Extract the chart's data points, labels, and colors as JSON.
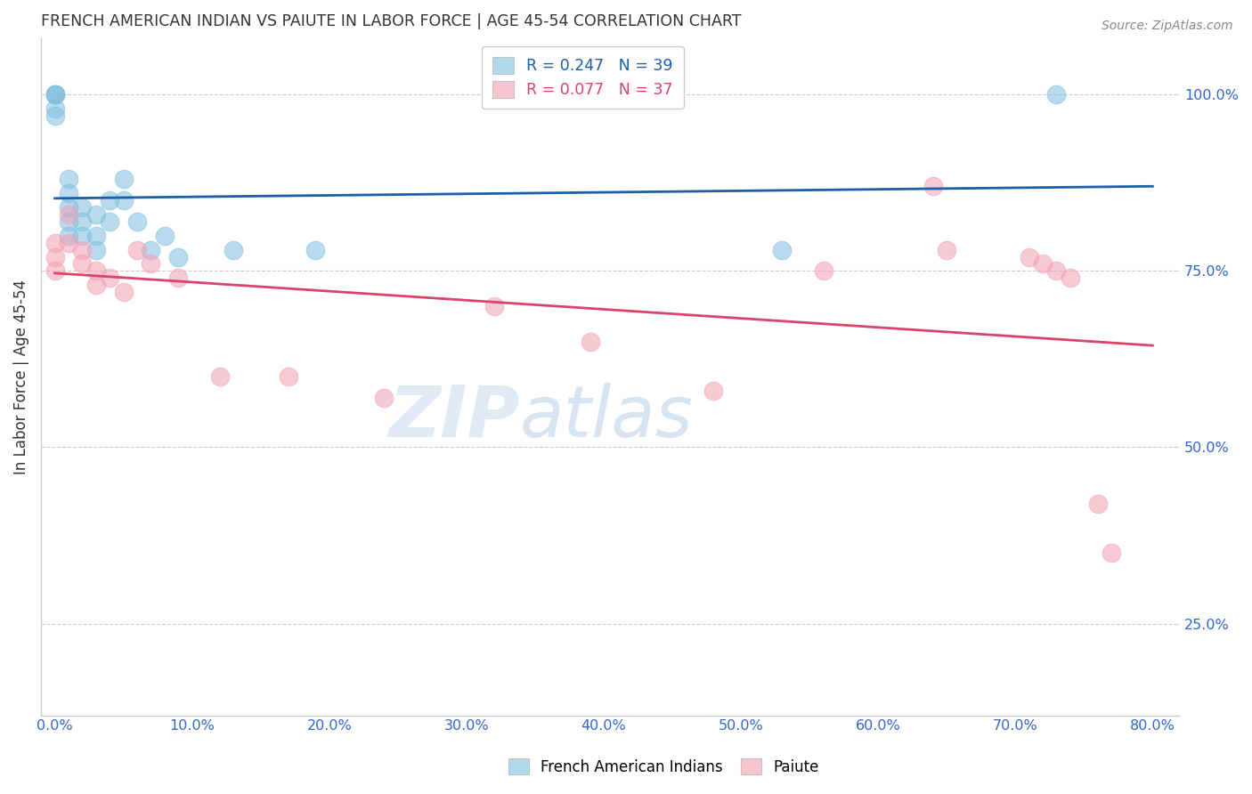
{
  "title": "FRENCH AMERICAN INDIAN VS PAIUTE IN LABOR FORCE | AGE 45-54 CORRELATION CHART",
  "source": "Source: ZipAtlas.com",
  "ylabel_label": "In Labor Force | Age 45-54",
  "ylabel_tick_vals": [
    1.0,
    0.75,
    0.5,
    0.25
  ],
  "ylabel_tick_labels": [
    "100.0%",
    "75.0%",
    "50.0%",
    "25.0%"
  ],
  "xtick_vals": [
    0.0,
    0.1,
    0.2,
    0.3,
    0.4,
    0.5,
    0.6,
    0.7,
    0.8
  ],
  "xtick_labels": [
    "0.0%",
    "10.0%",
    "20.0%",
    "30.0%",
    "40.0%",
    "50.0%",
    "60.0%",
    "70.0%",
    "80.0%"
  ],
  "xlim": [
    -0.01,
    0.82
  ],
  "ylim": [
    0.12,
    1.08
  ],
  "watermark_zip": "ZIP",
  "watermark_atlas": "atlas",
  "blue_color": "#7fbfdf",
  "pink_color": "#f4a0b5",
  "blue_line_color": "#1a5fa8",
  "pink_line_color": "#d9436e",
  "title_color": "#333333",
  "axis_label_color": "#333333",
  "tick_color": "#3366cc",
  "grid_color": "#cccccc",
  "blue_R": 0.247,
  "blue_N": 39,
  "pink_R": 0.077,
  "pink_N": 37,
  "blue_scatter_x": [
    0.0,
    0.0,
    0.0,
    0.0,
    0.0,
    0.01,
    0.01,
    0.01,
    0.01,
    0.01,
    0.02,
    0.02,
    0.02,
    0.03,
    0.03,
    0.03,
    0.04,
    0.04,
    0.05,
    0.05,
    0.06,
    0.07,
    0.08,
    0.09,
    0.13,
    0.19,
    0.53,
    0.73
  ],
  "blue_scatter_y": [
    1.0,
    1.0,
    1.0,
    0.98,
    0.97,
    0.88,
    0.86,
    0.84,
    0.82,
    0.8,
    0.84,
    0.82,
    0.8,
    0.83,
    0.8,
    0.78,
    0.85,
    0.82,
    0.88,
    0.85,
    0.82,
    0.78,
    0.8,
    0.77,
    0.78,
    0.78,
    0.78,
    1.0
  ],
  "pink_scatter_x": [
    0.0,
    0.0,
    0.0,
    0.01,
    0.01,
    0.02,
    0.02,
    0.03,
    0.03,
    0.04,
    0.05,
    0.06,
    0.07,
    0.09,
    0.12,
    0.17,
    0.24,
    0.32,
    0.39,
    0.48,
    0.56,
    0.64,
    0.65,
    0.71,
    0.72,
    0.73,
    0.74,
    0.76,
    0.77
  ],
  "pink_scatter_y": [
    0.79,
    0.77,
    0.75,
    0.83,
    0.79,
    0.78,
    0.76,
    0.75,
    0.73,
    0.74,
    0.72,
    0.78,
    0.76,
    0.74,
    0.6,
    0.6,
    0.57,
    0.7,
    0.65,
    0.58,
    0.75,
    0.87,
    0.78,
    0.77,
    0.76,
    0.75,
    0.74,
    0.42,
    0.35
  ]
}
